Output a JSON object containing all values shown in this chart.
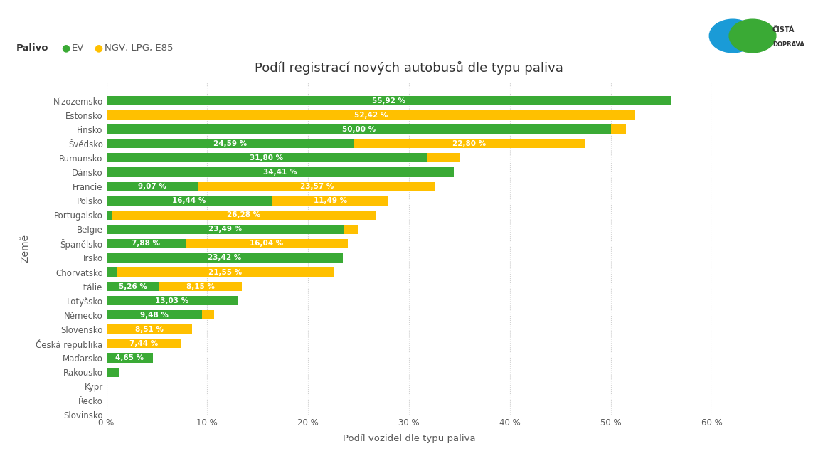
{
  "title": "Podíl registrací nových autobusů dle typu paliva",
  "xlabel": "Podíl vozidel dle typu paliva",
  "ylabel": "Země",
  "ev_label": "EV",
  "ngv_label": "NGV, LPG, E85",
  "palivo_label": "Palivo",
  "ev_color": "#3aaa35",
  "ngv_color": "#ffc000",
  "background_color": "#ffffff",
  "countries": [
    "Nizozemsko",
    "Estonsko",
    "Finsko",
    "Švédsko",
    "Rumunsko",
    "Dánsko",
    "Francie",
    "Polsko",
    "Portugalsko",
    "Belgie",
    "Španělsko",
    "Irsko",
    "Chorvatsko",
    "Itálie",
    "Lotyšsko",
    "Německo",
    "Slovensko",
    "Česká republika",
    "Maďarsko",
    "Rakousko",
    "Kypr",
    "Řecko",
    "Slovinsko"
  ],
  "ev_values": [
    55.92,
    0.0,
    50.0,
    24.59,
    31.8,
    34.41,
    9.07,
    16.44,
    0.5,
    23.49,
    7.88,
    23.42,
    1.0,
    5.26,
    13.03,
    9.48,
    0.0,
    0.0,
    4.65,
    1.2,
    0.0,
    0.0,
    0.0
  ],
  "ngv_values": [
    0.0,
    52.42,
    1.5,
    22.8,
    3.23,
    0.0,
    23.57,
    11.49,
    26.28,
    1.5,
    16.04,
    0.0,
    21.55,
    8.15,
    0.0,
    1.2,
    8.51,
    7.44,
    0.0,
    0.0,
    0.0,
    0.0,
    0.0
  ],
  "xlim": [
    0,
    60
  ],
  "xticks": [
    0,
    10,
    20,
    30,
    40,
    50,
    60
  ],
  "xticklabels": [
    "0 %",
    "10 %",
    "20 %",
    "30 %",
    "40 %",
    "50 %",
    "60 %"
  ],
  "text_color": "#595959",
  "label_fontsize": 7.5,
  "title_fontsize": 13,
  "bar_height": 0.65,
  "grid_color": "#d0d0d0",
  "ytick_fontsize": 8.5,
  "xtick_fontsize": 8.5
}
